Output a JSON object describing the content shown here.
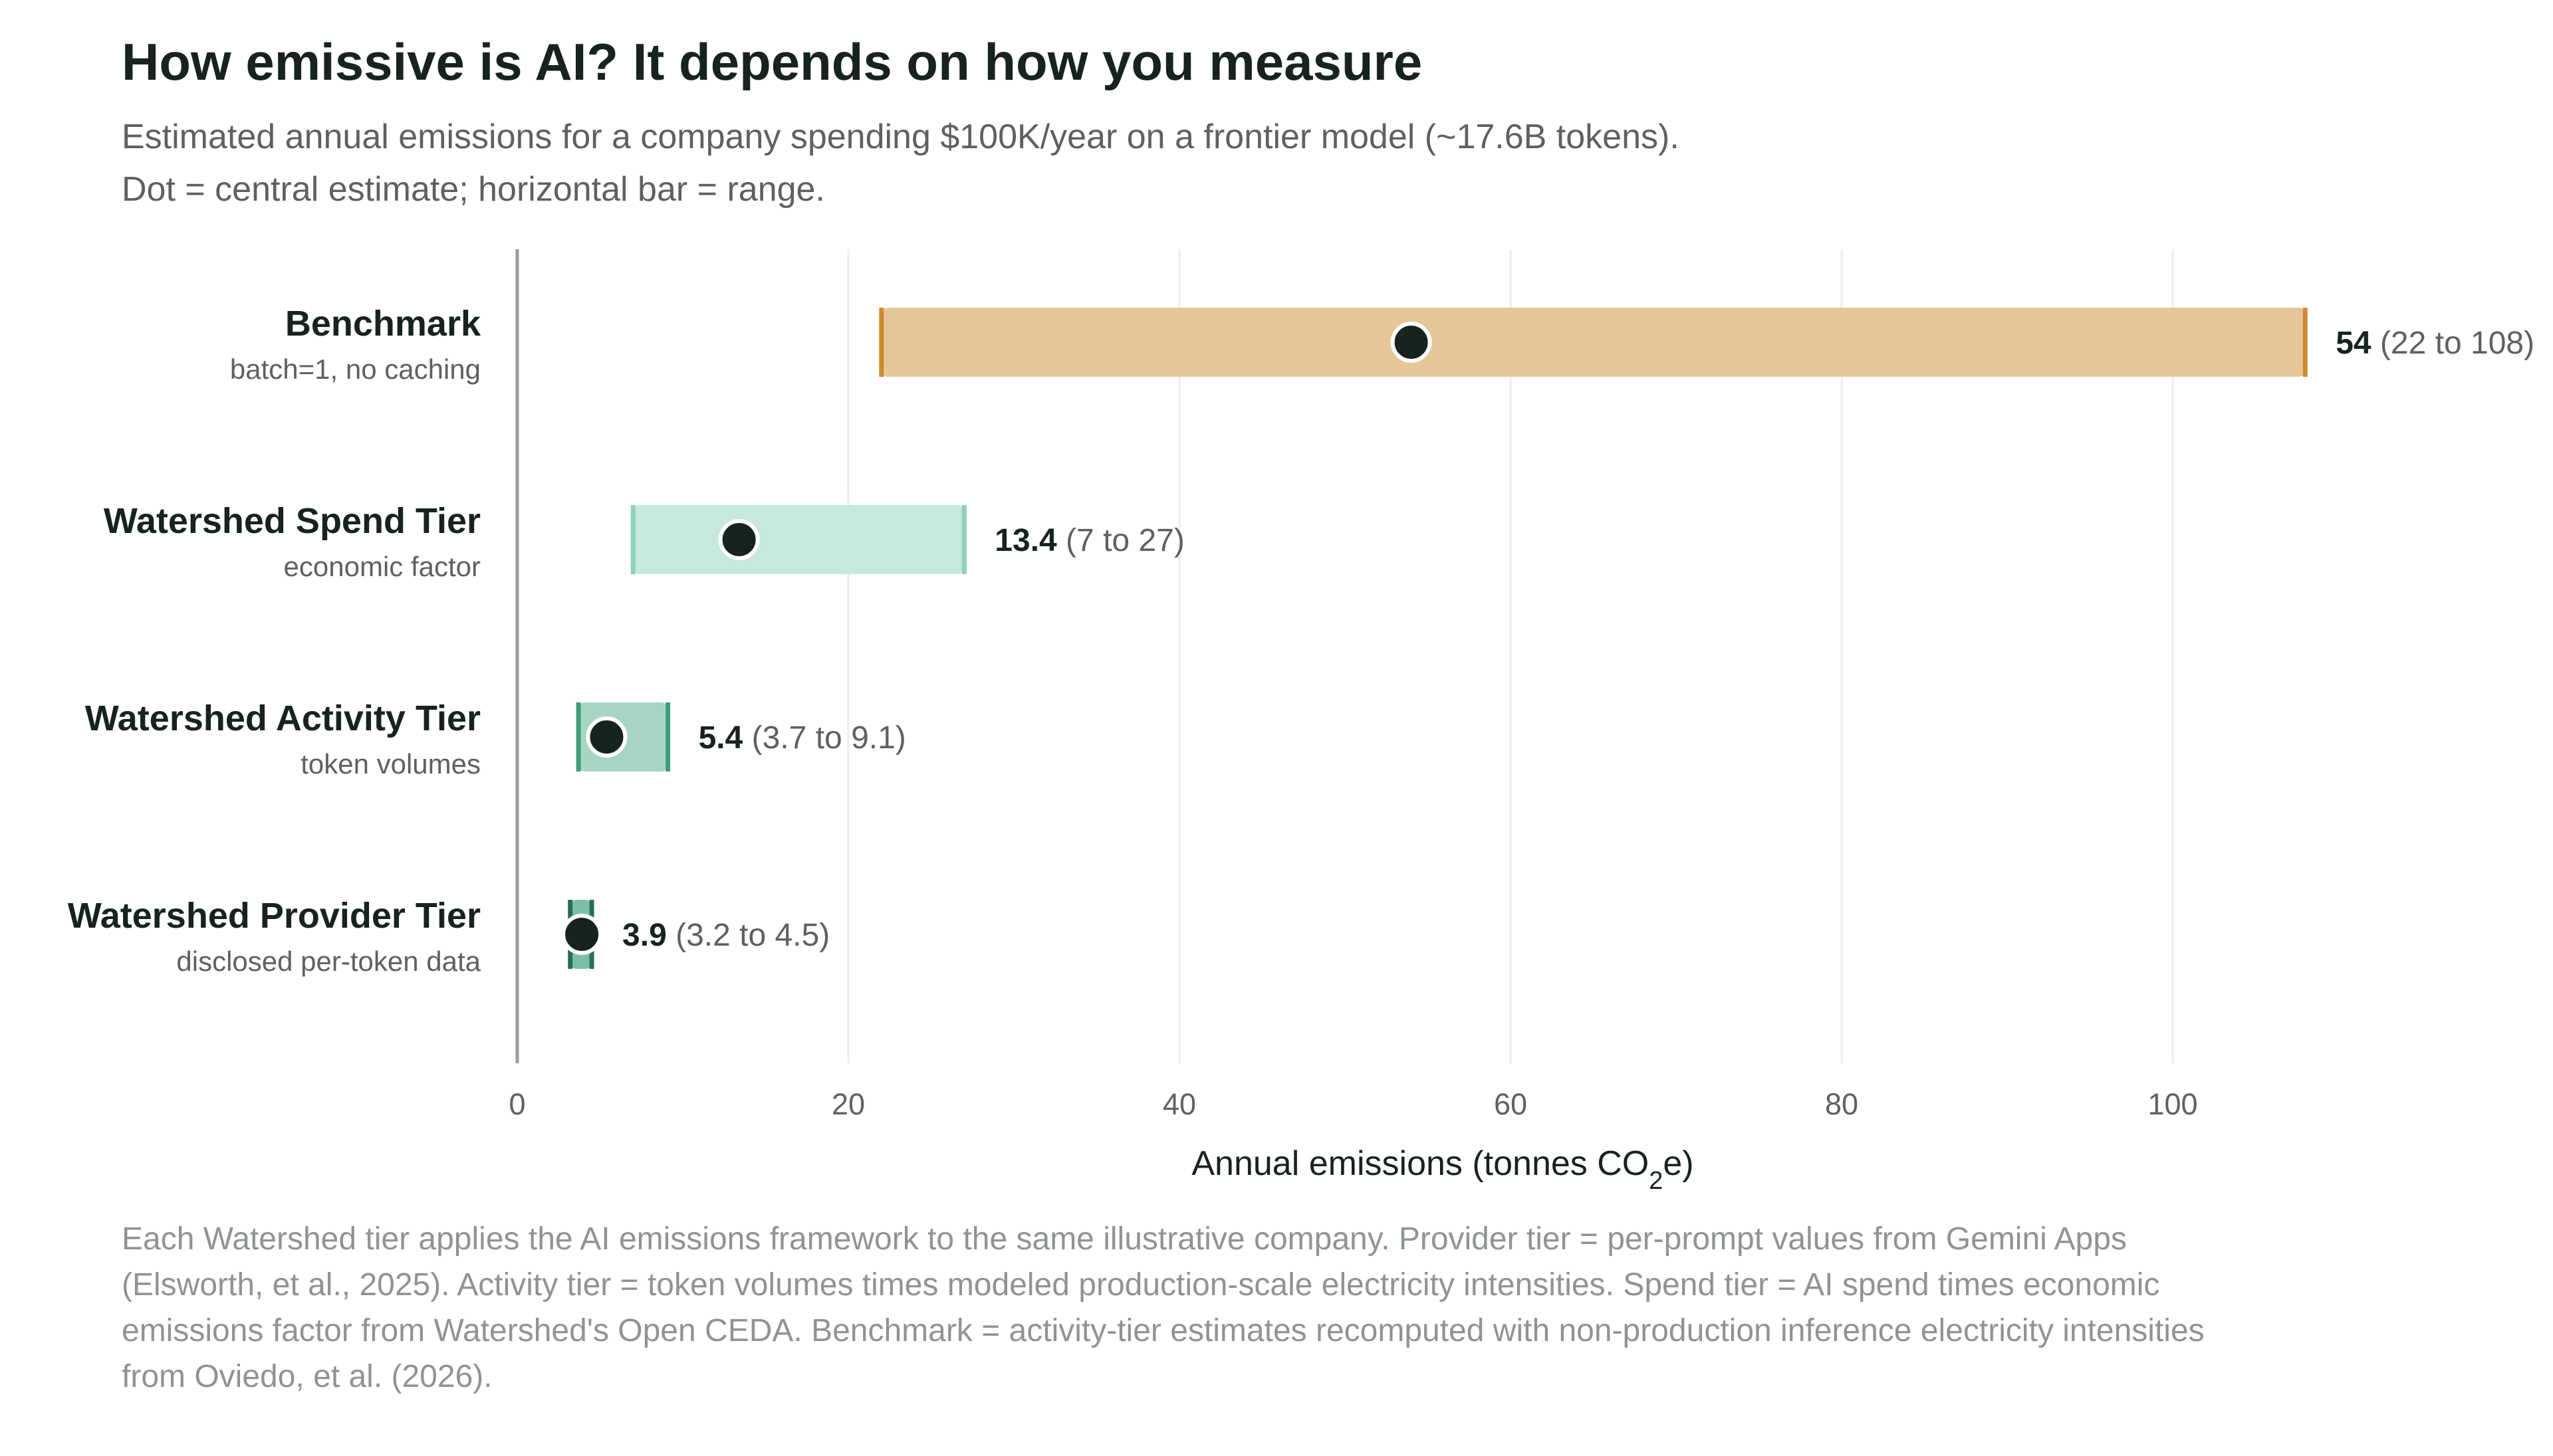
{
  "chart_data": {
    "type": "range-dot",
    "title": "How emissive is AI? It depends on how you measure",
    "subtitle_lines": [
      "Estimated annual emissions for a company spending $100K/year on a frontier model (~17.6B tokens).",
      "Dot = central estimate; horizontal bar = range."
    ],
    "xlabel_prefix": "Annual emissions (tonnes CO",
    "xlabel_sub": "2",
    "xlabel_suffix": "e)",
    "xlim": [
      0,
      110
    ],
    "xticks": [
      0,
      20,
      40,
      60,
      80,
      100
    ],
    "grid": "vertical",
    "rows": [
      {
        "label": "Benchmark",
        "sublabel": "batch=1, no caching",
        "value": 54,
        "low": 22,
        "high": 108,
        "value_text": "54",
        "range_text": "(22 to 108)",
        "bar_color": "#e6c699",
        "cap_color": "#cf8b2f"
      },
      {
        "label": "Watershed Spend Tier",
        "sublabel": "economic factor",
        "value": 13.4,
        "low": 7,
        "high": 27,
        "value_text": "13.4",
        "range_text": "(7 to 27)",
        "bar_color": "#c6e8dd",
        "cap_color": "#8fd1bb"
      },
      {
        "label": "Watershed Activity Tier",
        "sublabel": "token volumes",
        "value": 5.4,
        "low": 3.7,
        "high": 9.1,
        "value_text": "5.4",
        "range_text": "(3.7 to 9.1)",
        "bar_color": "#a6d5c4",
        "cap_color": "#3e9d7a"
      },
      {
        "label": "Watershed Provider Tier",
        "sublabel": "disclosed per-token data",
        "value": 3.9,
        "low": 3.2,
        "high": 4.5,
        "value_text": "3.9",
        "range_text": "(3.2 to 4.5)",
        "bar_color": "#7cbfa6",
        "cap_color": "#276e55"
      }
    ]
  },
  "footnote": "Each Watershed tier applies the AI emissions framework to the same illustrative company. Provider tier = per-prompt values from Gemini Apps (Elsworth, et al., 2025). Activity tier = token volumes times modeled production-scale electricity intensities. Spend tier = AI spend times economic emissions factor from Watershed's Open CEDA. Benchmark = activity-tier estimates recomputed with non-production inference electricity intensities from Oviedo, et al. (2026).",
  "colors": {
    "title": "#17231d",
    "subtitle": "#5d615f",
    "dot": "#17231d",
    "axis": "#9a9a9a",
    "grid": "#ececec",
    "footnote": "#8f9491"
  }
}
